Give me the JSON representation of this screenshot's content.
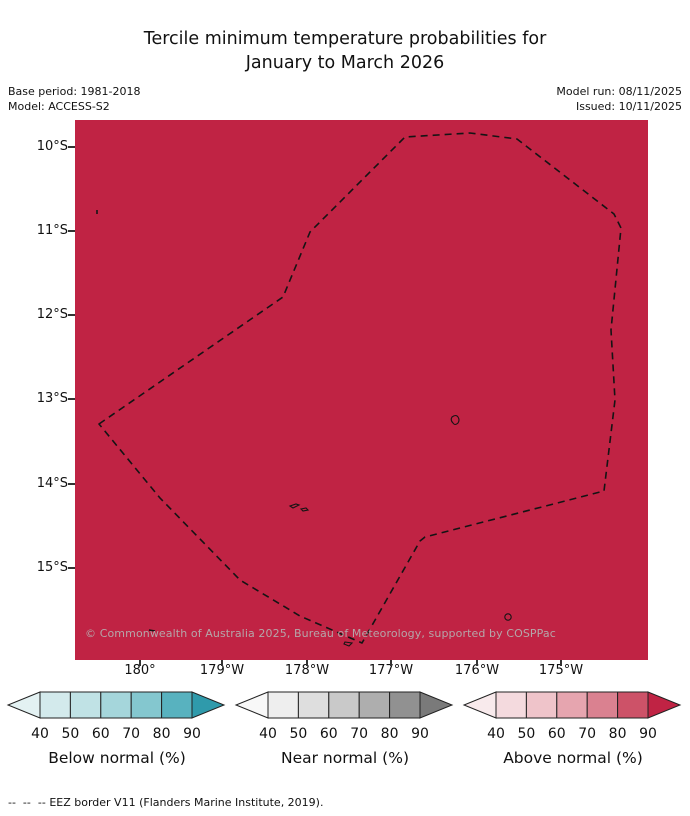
{
  "title": {
    "line1": "Tercile minimum temperature probabilities for",
    "line2": "January to March 2026"
  },
  "meta": {
    "base_period": "Base period: 1981-2018",
    "model": "Model: ACCESS-S2",
    "model_run": "Model run: 08/11/2025",
    "issued": "Issued: 10/11/2025"
  },
  "map": {
    "fill_color": "#c02344",
    "eez_border_color": "#141414",
    "copyright": "© Commonwealth of Australia 2025, Bureau of Meteorology, supported by COSPPac",
    "y_axis_labels": [
      "10°S",
      "11°S",
      "12°S",
      "13°S",
      "14°S",
      "15°S"
    ],
    "x_axis_labels": [
      "180°",
      "179°W",
      "178°W",
      "177°W",
      "176°W",
      "175°W"
    ]
  },
  "legends": [
    {
      "caption": "Below normal (%)",
      "ticks": [
        "40",
        "50",
        "60",
        "70",
        "80",
        "90"
      ],
      "colors": [
        "#e3f1f2",
        "#d3eaec",
        "#c0e2e5",
        "#a5d6db",
        "#84c7cf",
        "#58b2bf",
        "#2f9aab"
      ]
    },
    {
      "caption": "Near normal (%)",
      "ticks": [
        "40",
        "50",
        "60",
        "70",
        "80",
        "90"
      ],
      "colors": [
        "#f8f8f8",
        "#eeeeee",
        "#dedede",
        "#c9c9c9",
        "#aeaeae",
        "#919191",
        "#7a7a7a"
      ]
    },
    {
      "caption": "Above normal (%)",
      "ticks": [
        "40",
        "50",
        "60",
        "70",
        "80",
        "90"
      ],
      "colors": [
        "#f8eaec",
        "#f4dade",
        "#efc4ca",
        "#e6a5af",
        "#da8190",
        "#cd5268",
        "#c02344"
      ]
    }
  ],
  "footer": {
    "dash_sample": "--  --  --",
    "label": "EEZ border V11 (Flanders Marine Institute, 2019)."
  }
}
